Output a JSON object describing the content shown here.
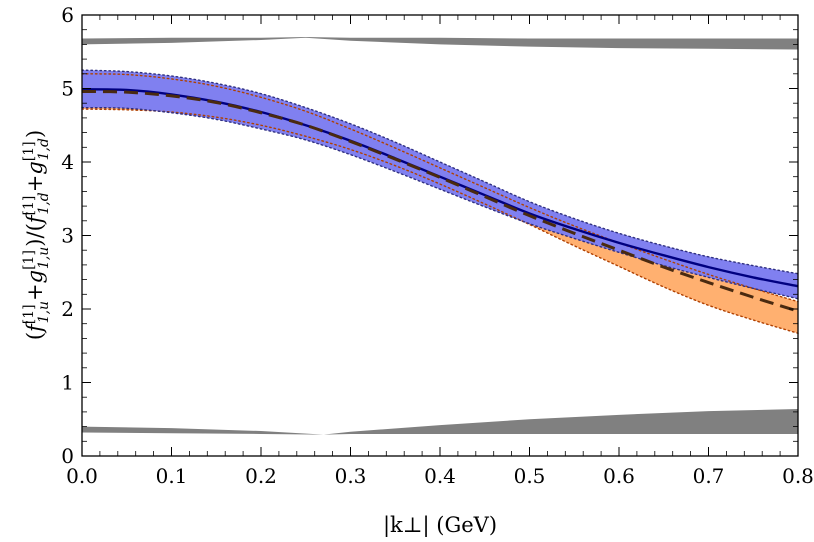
{
  "chart_data": {
    "type": "line",
    "title": "",
    "xlabel": "|k⊥|  (GeV)",
    "ylabel": "(f1,u[1]+g1,u[1])/(f1,d[1]+g1,d[1])",
    "ylabel_parts": {
      "open": "(",
      "f": "f",
      "sup1": "[1]",
      "sub1": "1,u",
      "plus": "+",
      "g": "g",
      "sup2": "[1]",
      "sub2": "1,u",
      "middle": ")/(",
      "f2": "f",
      "sup3": "[1]",
      "sub3": "1,d",
      "plus2": "+",
      "g2": "g",
      "sup4": "[1]",
      "sub4": "1,d",
      "close": ")"
    },
    "xlim": [
      0.0,
      0.8
    ],
    "ylim": [
      0,
      6
    ],
    "x_ticks": [
      0.0,
      0.1,
      0.2,
      0.3,
      0.4,
      0.5,
      0.6,
      0.7,
      0.8
    ],
    "x_tick_labels": [
      "0.0",
      "0.1",
      "0.2",
      "0.3",
      "0.4",
      "0.5",
      "0.6",
      "0.7",
      "0.8"
    ],
    "y_ticks": [
      0,
      1,
      2,
      3,
      4,
      5,
      6
    ],
    "y_tick_labels": [
      "0",
      "1",
      "2",
      "3",
      "4",
      "5",
      "6"
    ],
    "grid": false,
    "colors": {
      "blue_band": "#8080f0",
      "orange_band": "#ffb070",
      "gray_band": "#808080",
      "solid_line": "#000080",
      "dashed_line": "#4a2a10",
      "dotted_orange": "#b04000",
      "dotted_blue": "#303080"
    },
    "x": [
      0.0,
      0.05,
      0.1,
      0.15,
      0.2,
      0.25,
      0.3,
      0.35,
      0.4,
      0.45,
      0.5,
      0.55,
      0.6,
      0.65,
      0.7,
      0.75,
      0.8
    ],
    "series": [
      {
        "name": "solid",
        "style": "solid",
        "values": [
          4.99,
          4.98,
          4.92,
          4.82,
          4.68,
          4.5,
          4.29,
          4.05,
          3.8,
          3.55,
          3.3,
          3.09,
          2.9,
          2.73,
          2.57,
          2.43,
          2.31
        ]
      },
      {
        "name": "dashed",
        "style": "dashed",
        "values": [
          4.96,
          4.95,
          4.9,
          4.81,
          4.67,
          4.5,
          4.28,
          4.04,
          3.79,
          3.53,
          3.27,
          3.03,
          2.8,
          2.57,
          2.36,
          2.16,
          1.97
        ]
      }
    ],
    "bands": [
      {
        "name": "orange-band",
        "lower": [
          4.72,
          4.71,
          4.68,
          4.61,
          4.5,
          4.35,
          4.17,
          3.95,
          3.7,
          3.43,
          3.15,
          2.86,
          2.58,
          2.3,
          2.05,
          1.85,
          1.67
        ],
        "upper": [
          5.2,
          5.19,
          5.13,
          5.03,
          4.88,
          4.69,
          4.45,
          4.19,
          3.92,
          3.65,
          3.38,
          3.13,
          2.9,
          2.68,
          2.47,
          2.28,
          2.1
        ]
      },
      {
        "name": "blue-band",
        "lower": [
          4.74,
          4.73,
          4.67,
          4.58,
          4.45,
          4.3,
          4.1,
          3.87,
          3.63,
          3.39,
          3.16,
          2.96,
          2.77,
          2.59,
          2.43,
          2.28,
          2.14
        ],
        "upper": [
          5.25,
          5.23,
          5.17,
          5.07,
          4.93,
          4.74,
          4.52,
          4.27,
          4.0,
          3.73,
          3.46,
          3.23,
          3.03,
          2.86,
          2.71,
          2.59,
          2.48
        ]
      },
      {
        "name": "gray-band-top",
        "x": [
          0.0,
          0.1,
          0.2,
          0.25,
          0.3,
          0.4,
          0.5,
          0.6,
          0.7,
          0.8
        ],
        "lower": [
          5.6,
          5.62,
          5.66,
          5.69,
          5.65,
          5.6,
          5.57,
          5.55,
          5.54,
          5.53
        ],
        "upper": [
          5.68,
          5.69,
          5.69,
          5.7,
          5.69,
          5.69,
          5.68,
          5.68,
          5.68,
          5.68
        ]
      },
      {
        "name": "gray-band-bottom",
        "x": [
          0.0,
          0.1,
          0.2,
          0.27,
          0.3,
          0.4,
          0.5,
          0.6,
          0.7,
          0.8
        ],
        "lower": [
          0.32,
          0.31,
          0.3,
          0.29,
          0.3,
          0.3,
          0.3,
          0.3,
          0.3,
          0.3
        ],
        "upper": [
          0.4,
          0.38,
          0.34,
          0.29,
          0.33,
          0.42,
          0.5,
          0.56,
          0.61,
          0.64
        ]
      }
    ]
  }
}
